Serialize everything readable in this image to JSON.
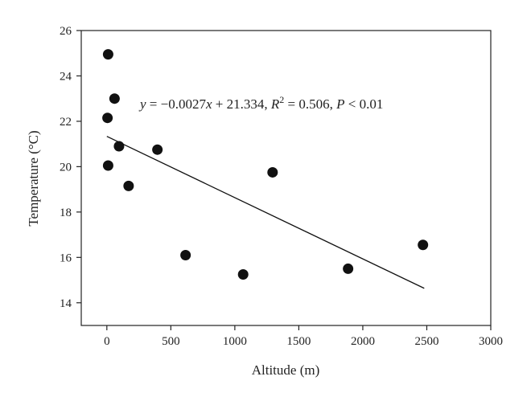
{
  "chart_data": {
    "type": "scatter",
    "xlabel": "Altitude (m)",
    "ylabel": "Temperature (°C)",
    "xlim": [
      -200,
      3000
    ],
    "ylim": [
      13,
      26
    ],
    "x_ticks": [
      0,
      500,
      1000,
      1500,
      2000,
      2500,
      3000
    ],
    "y_ticks": [
      14,
      16,
      18,
      20,
      22,
      24,
      26
    ],
    "x_tick_labels": [
      "0",
      "500",
      "1000",
      "1500",
      "2000",
      "2500",
      "3000"
    ],
    "y_tick_labels": [
      "14",
      "16",
      "18",
      "20",
      "22",
      "24",
      "26"
    ],
    "points": [
      {
        "x": 10,
        "y": 24.95
      },
      {
        "x": 60,
        "y": 23.0
      },
      {
        "x": 5,
        "y": 22.15
      },
      {
        "x": 95,
        "y": 20.9
      },
      {
        "x": 10,
        "y": 20.05
      },
      {
        "x": 170,
        "y": 19.15
      },
      {
        "x": 395,
        "y": 20.75
      },
      {
        "x": 615,
        "y": 16.1
      },
      {
        "x": 1065,
        "y": 15.25
      },
      {
        "x": 1295,
        "y": 19.75
      },
      {
        "x": 1885,
        "y": 15.5
      },
      {
        "x": 2470,
        "y": 16.55
      }
    ],
    "trendline": {
      "slope": -0.0027,
      "intercept": 21.334,
      "x_start": 0,
      "x_end": 2480
    },
    "annotation": {
      "y": "y",
      "eq": " = −0.0027",
      "x": "x",
      "mid": " + 21.334, ",
      "R": "R",
      "sup": "2",
      "after_r": " = 0.506, ",
      "P": "P",
      "end": " < 0.01"
    },
    "grid": false,
    "marker_color": "#111111",
    "line_color": "#111111"
  }
}
